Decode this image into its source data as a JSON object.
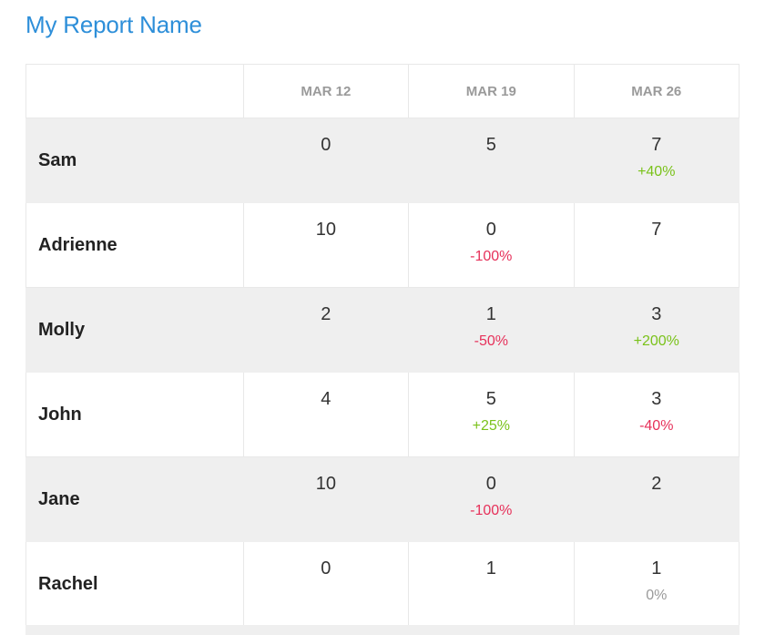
{
  "report": {
    "title": "My Report Name",
    "headers": [
      "",
      "MAR 12",
      "MAR 19",
      "MAR 26"
    ],
    "rows": [
      {
        "name": "Sam",
        "cells": [
          {
            "value": "0",
            "delta": "",
            "trend": "none"
          },
          {
            "value": "5",
            "delta": "",
            "trend": "none"
          },
          {
            "value": "7",
            "delta": "+40%",
            "trend": "up"
          }
        ]
      },
      {
        "name": "Adrienne",
        "cells": [
          {
            "value": "10",
            "delta": "",
            "trend": "none"
          },
          {
            "value": "0",
            "delta": "-100%",
            "trend": "down"
          },
          {
            "value": "7",
            "delta": "",
            "trend": "none"
          }
        ]
      },
      {
        "name": "Molly",
        "cells": [
          {
            "value": "2",
            "delta": "",
            "trend": "none"
          },
          {
            "value": "1",
            "delta": "-50%",
            "trend": "down"
          },
          {
            "value": "3",
            "delta": "+200%",
            "trend": "up"
          }
        ]
      },
      {
        "name": "John",
        "cells": [
          {
            "value": "4",
            "delta": "",
            "trend": "none"
          },
          {
            "value": "5",
            "delta": "+25%",
            "trend": "up"
          },
          {
            "value": "3",
            "delta": "-40%",
            "trend": "down"
          }
        ]
      },
      {
        "name": "Jane",
        "cells": [
          {
            "value": "10",
            "delta": "",
            "trend": "none"
          },
          {
            "value": "0",
            "delta": "-100%",
            "trend": "down"
          },
          {
            "value": "2",
            "delta": "",
            "trend": "none"
          }
        ]
      },
      {
        "name": "Rachel",
        "cells": [
          {
            "value": "0",
            "delta": "",
            "trend": "none"
          },
          {
            "value": "1",
            "delta": "",
            "trend": "none"
          },
          {
            "value": "1",
            "delta": "0%",
            "trend": "flat"
          }
        ]
      }
    ]
  },
  "colors": {
    "title": "#2e8fd9",
    "increase": "#7ac21a",
    "decrease": "#e6315a",
    "neutral": "#9a9a9a",
    "row_shade": "#efefef"
  }
}
